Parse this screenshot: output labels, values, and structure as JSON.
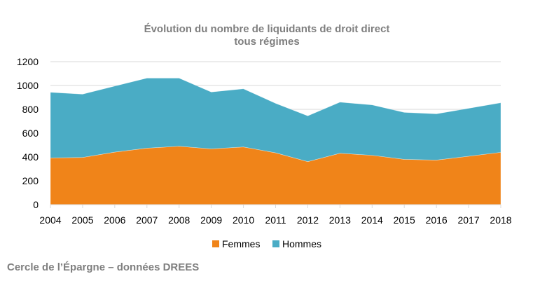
{
  "chart_data": {
    "type": "area",
    "stacked": true,
    "title": "Évolution du nombre de liquidants de droit direct",
    "subtitle": "tous régimes",
    "xlabel": "",
    "ylabel": "",
    "categories": [
      "2004",
      "2005",
      "2006",
      "2007",
      "2008",
      "2009",
      "2010",
      "2011",
      "2012",
      "2013",
      "2014",
      "2015",
      "2016",
      "2017",
      "2018"
    ],
    "series": [
      {
        "name": "Femmes",
        "color": "#f08419",
        "values": [
          392,
          396,
          441,
          474,
          490,
          468,
          484,
          435,
          361,
          431,
          414,
          380,
          374,
          406,
          439
        ]
      },
      {
        "name": "Hommes",
        "color": "#4aacc5",
        "values": [
          551,
          531,
          554,
          588,
          572,
          477,
          488,
          415,
          384,
          429,
          423,
          394,
          388,
          402,
          416
        ]
      }
    ],
    "ylim": [
      0,
      1200
    ],
    "yticks": [
      0,
      200,
      400,
      600,
      800,
      1000,
      1200
    ],
    "grid": true,
    "legend_position": "bottom"
  },
  "footer": "Cercle de l’Épargne – données DREES"
}
